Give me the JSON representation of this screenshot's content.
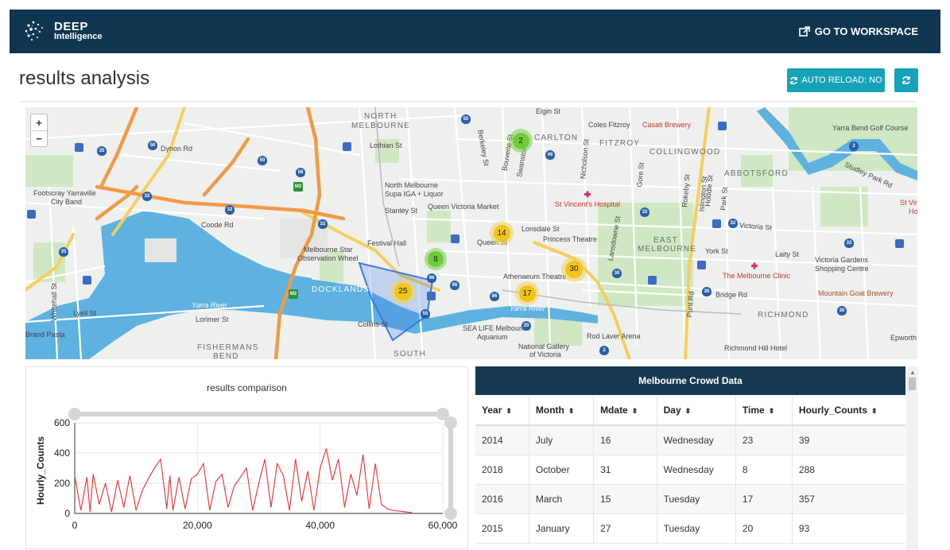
{
  "header": {
    "logo_line1": "DEEP",
    "logo_line2": "Intelligence",
    "workspace_label": "GO TO WORKSPACE"
  },
  "page": {
    "title": "results analysis",
    "auto_reload_label": "AUTO RELOAD: NO"
  },
  "map": {
    "districts": [
      "NORTH",
      "MELBOURNE",
      "CARLTON",
      "FITZROY",
      "COLLINGWOOD",
      "ABBOTSFORD",
      "EAST",
      "MELBOURNE",
      "RICHMOND",
      "DOCKLANDS",
      "FISHERMANS",
      "BEND",
      "SOUTH"
    ],
    "labels": [
      "Dynon Rd",
      "Footscray Yarraville",
      "City Band",
      "Coode Rd",
      "Lothian St",
      "North Melbourne",
      "Supa IGA + Liquor",
      "Queen Victoria Market",
      "Stanley St",
      "Festival Hall",
      "Melbourne Star",
      "Observation Wheel",
      "Lonsdale St",
      "Princess Theatre",
      "Athenaeum Theatre",
      "Queen St",
      "Collins St",
      "SEA LIFE Melbourne",
      "Aquarium",
      "National Gallery",
      "of Victoria",
      "Rod Laver Arena",
      "Richmond Hill Hotel",
      "Coles Fitzroy",
      "Casati Brewery",
      "Yarra Bend Golf Course",
      "Studley Park Rd",
      "Victoria St",
      "Victoria Gardens",
      "Shopping Centre",
      "Mountain Goat Brewery",
      "The Melbourne Clinic",
      "St Vincent's Hospital",
      "Bridge Rd",
      "Punt Rd",
      "Lansdowne St",
      "Nicholson St",
      "Swanston St",
      "Berkeley St",
      "Elgin St",
      "Lorimer St",
      "Lyell St",
      "Whitehall St",
      "Brand Pasta",
      "York St",
      "Laity St",
      "Hoddle St",
      "Epworth",
      "St Vin",
      "Ho",
      "Gore St",
      "Rokeby St",
      "Islington St",
      "Park St",
      "Bouverie St",
      "Yarra River",
      "Yarra River"
    ],
    "clusters": [
      {
        "count": "2",
        "color": "green"
      },
      {
        "count": "14",
        "color": "yellow"
      },
      {
        "count": "8",
        "color": "green"
      },
      {
        "count": "30",
        "color": "yellow"
      },
      {
        "count": "25",
        "color": "yellow"
      },
      {
        "count": "17",
        "color": "yellow"
      }
    ],
    "route_shields": [
      "35",
      "50",
      "50",
      "58",
      "32",
      "32",
      "32",
      "55",
      "46",
      "35",
      "96",
      "96",
      "86",
      "55",
      "32",
      "32",
      "30",
      "30",
      "30",
      "20",
      "2",
      "2",
      "M2",
      "M2",
      "32"
    ],
    "zoom_in": "+",
    "zoom_out": "−"
  },
  "chart_data": {
    "type": "line",
    "title": "results comparison",
    "xlabel": "",
    "ylabel": "Hourly_Counts",
    "xlim": [
      0,
      60000
    ],
    "ylim": [
      0,
      600
    ],
    "x_ticks": [
      "0",
      "20,000",
      "40,000",
      "60,000"
    ],
    "y_ticks": [
      "0",
      "200",
      "400",
      "600"
    ],
    "series": [
      {
        "color": "#e04040",
        "x": [
          0,
          1000,
          2000,
          2500,
          3000,
          4000,
          5000,
          6000,
          7000,
          8000,
          9000,
          10000,
          11000,
          12000,
          13000,
          14000,
          15000,
          15500,
          16000,
          17000,
          18000,
          19000,
          20000,
          21000,
          22000,
          23000,
          24000,
          25000,
          26000,
          27000,
          28000,
          29000,
          30000,
          31000,
          32000,
          33000,
          34000,
          35000,
          36000,
          37000,
          38000,
          39000,
          40000,
          41000,
          42000,
          43000,
          44000,
          45000,
          46000,
          47000,
          48000,
          49000,
          50000,
          51000,
          52000,
          53000,
          54000,
          55000
        ],
        "y": [
          250,
          20,
          240,
          10,
          260,
          60,
          200,
          10,
          220,
          40,
          250,
          20,
          150,
          230,
          300,
          360,
          30,
          250,
          20,
          240,
          30,
          230,
          260,
          330,
          20,
          210,
          260,
          40,
          180,
          240,
          300,
          20,
          200,
          360,
          40,
          330,
          250,
          20,
          360,
          80,
          280,
          20,
          300,
          430,
          220,
          360,
          40,
          260,
          120,
          390,
          30,
          330,
          60,
          30,
          20,
          15,
          10,
          5
        ]
      }
    ]
  },
  "table": {
    "title": "Melbourne Crowd Data",
    "columns": [
      "Year",
      "Month",
      "Mdate",
      "Day",
      "Time",
      "Hourly_Counts"
    ],
    "rows": [
      [
        "2014",
        "July",
        "16",
        "Wednesday",
        "23",
        "39"
      ],
      [
        "2018",
        "October",
        "31",
        "Wednesday",
        "8",
        "288"
      ],
      [
        "2016",
        "March",
        "15",
        "Tuesday",
        "17",
        "357"
      ],
      [
        "2015",
        "January",
        "27",
        "Tuesday",
        "20",
        "93"
      ]
    ]
  },
  "colors": {
    "navbar": "#0f3550",
    "accent": "#17a2b8",
    "table_header": "#163a52",
    "river": "#4fa7d8",
    "line": "#e04040"
  }
}
